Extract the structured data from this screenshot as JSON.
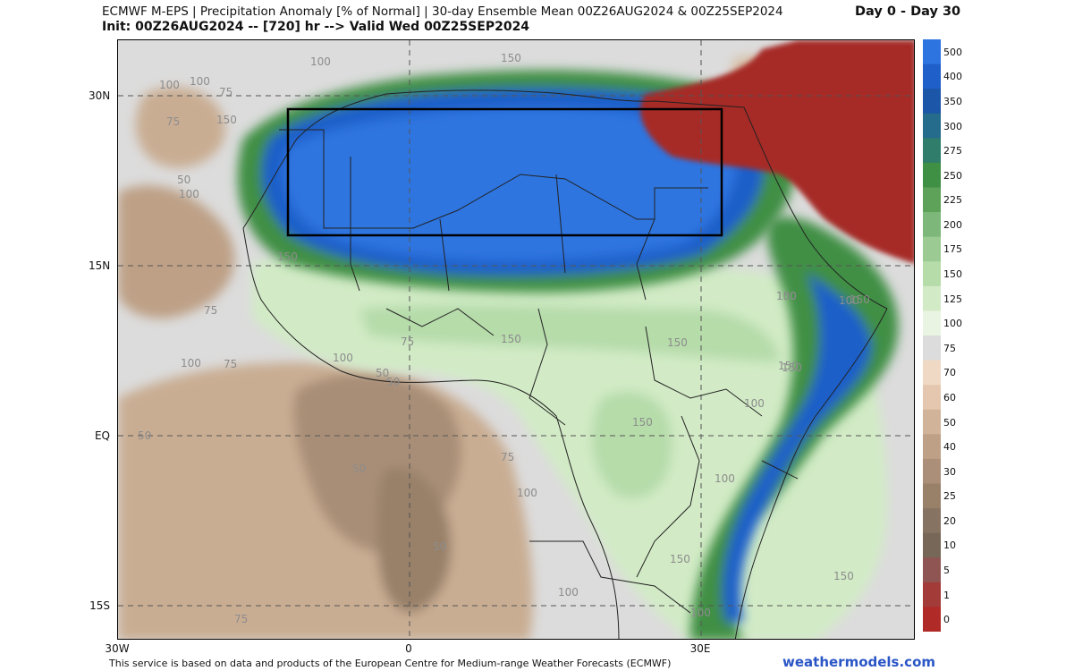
{
  "header": {
    "title_line1": "ECMWF M-EPS | Precipitation Anomaly [% of Normal] | 30-day Ensemble Mean 00Z26AUG2024 & 00Z25SEP2024",
    "title_line2": "Init: 00Z26AUG2024 -- [720] hr --> Valid Wed 00Z25SEP2024",
    "period": "Day 0 - Day 30"
  },
  "axes": {
    "lat_labels": [
      "30N",
      "15N",
      "EQ",
      "15S"
    ],
    "lon_labels": [
      "30W",
      "0",
      "30E"
    ]
  },
  "colorbar": {
    "levels": [
      "500",
      "400",
      "350",
      "300",
      "275",
      "250",
      "225",
      "200",
      "175",
      "150",
      "125",
      "100",
      "75",
      "70",
      "60",
      "50",
      "40",
      "30",
      "25",
      "20",
      "10",
      "5",
      "1",
      "0"
    ],
    "colors": [
      "#2e74e0",
      "#1f5fc9",
      "#1c56a8",
      "#246b8c",
      "#2f7d6a",
      "#3f8f45",
      "#5ea25a",
      "#7db87a",
      "#9bcb93",
      "#b6dcaa",
      "#d2ebc6",
      "#e9f5e2",
      "#dcdcdc",
      "#f0d9c4",
      "#e4c7ae",
      "#d1b39a",
      "#bea086",
      "#ab8f78",
      "#988069",
      "#877362",
      "#776758",
      "#8f5552",
      "#a33b38",
      "#b02a27"
    ]
  },
  "map": {
    "contour_labels": [
      "100",
      "75",
      "100",
      "75",
      "150",
      "150",
      "150",
      "50",
      "100",
      "150",
      "75",
      "100",
      "75",
      "100",
      "150",
      "75",
      "50",
      "150",
      "150",
      "100",
      "150",
      "150",
      "100",
      "50",
      "100",
      "50",
      "50",
      "75",
      "100",
      "150",
      "100",
      "50",
      "100",
      "150",
      "100",
      "75",
      "100",
      "150"
    ]
  },
  "footer": {
    "disclaimer": "This service is based on data and products of the European Centre for Medium-range Weather Forecasts (ECMWF)",
    "credit": "weathermodels.com"
  }
}
